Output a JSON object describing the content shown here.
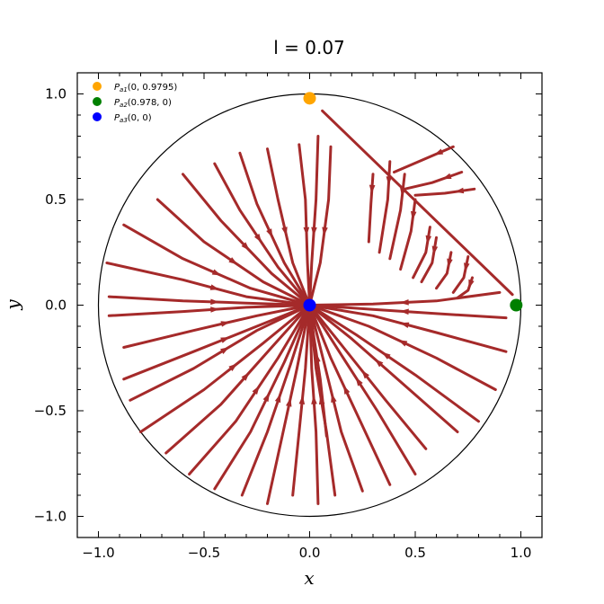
{
  "chart_data": {
    "type": "streamplot",
    "title": "l = 0.07",
    "xlabel": "x",
    "ylabel": "y",
    "xlim": [
      -1.1,
      1.1
    ],
    "ylim": [
      -1.1,
      1.1
    ],
    "x_ticks": [
      -1.0,
      -0.5,
      0.0,
      0.5,
      1.0
    ],
    "y_ticks": [
      -1.0,
      -0.5,
      0.0,
      0.5,
      1.0
    ],
    "x_tick_labels": [
      "−1.0",
      "−0.5",
      "0.0",
      "0.5",
      "1.0"
    ],
    "y_tick_labels": [
      "−1.0",
      "−0.5",
      "0.0",
      "0.5",
      "1.0"
    ],
    "grid": false,
    "legend_position": "top-left",
    "boundary_circle_radius": 1.0,
    "stream_color": "#a52a2a",
    "fixed_points": [
      {
        "label_sym": "P",
        "label_sub": "a1",
        "label_coords": "(0, 0.9795)",
        "x": 0.0,
        "y": 0.9795,
        "color": "#ffa500"
      },
      {
        "label_sym": "P",
        "label_sub": "a2",
        "label_coords": "(0.978, 0)",
        "x": 0.978,
        "y": 0.0,
        "color": "#008000"
      },
      {
        "label_sym": "P",
        "label_sub": "a3",
        "label_coords": "(0, 0)",
        "x": 0.0,
        "y": 0.0,
        "color": "#0000ff"
      }
    ],
    "separatrix": [
      [
        0.06,
        0.92
      ],
      [
        0.96,
        0.05
      ]
    ],
    "streamlines": [
      [
        [
          -0.05,
          0.76
        ],
        [
          -0.02,
          0.5
        ],
        [
          -0.01,
          0.2
        ],
        [
          0.0,
          0.0
        ]
      ],
      [
        [
          0.04,
          0.8
        ],
        [
          0.03,
          0.5
        ],
        [
          0.01,
          0.2
        ],
        [
          0.0,
          0.0
        ]
      ],
      [
        [
          0.1,
          0.75
        ],
        [
          0.09,
          0.5
        ],
        [
          0.05,
          0.2
        ],
        [
          0.0,
          0.0
        ]
      ],
      [
        [
          -0.2,
          0.74
        ],
        [
          -0.15,
          0.5
        ],
        [
          -0.08,
          0.2
        ],
        [
          0.0,
          0.0
        ]
      ],
      [
        [
          -0.33,
          0.72
        ],
        [
          -0.25,
          0.48
        ],
        [
          -0.12,
          0.2
        ],
        [
          0.0,
          0.0
        ]
      ],
      [
        [
          -0.45,
          0.67
        ],
        [
          -0.33,
          0.45
        ],
        [
          -0.15,
          0.18
        ],
        [
          0.0,
          0.0
        ]
      ],
      [
        [
          -0.6,
          0.62
        ],
        [
          -0.42,
          0.4
        ],
        [
          -0.18,
          0.15
        ],
        [
          0.0,
          0.0
        ]
      ],
      [
        [
          -0.72,
          0.5
        ],
        [
          -0.5,
          0.3
        ],
        [
          -0.22,
          0.11
        ],
        [
          0.0,
          0.0
        ]
      ],
      [
        [
          -0.88,
          0.38
        ],
        [
          -0.6,
          0.22
        ],
        [
          -0.28,
          0.08
        ],
        [
          0.0,
          0.0
        ]
      ],
      [
        [
          -0.96,
          0.2
        ],
        [
          -0.6,
          0.12
        ],
        [
          -0.3,
          0.04
        ],
        [
          0.0,
          0.0
        ]
      ],
      [
        [
          -0.95,
          0.04
        ],
        [
          -0.6,
          0.02
        ],
        [
          -0.3,
          0.01
        ],
        [
          0.0,
          0.0
        ]
      ],
      [
        [
          -0.95,
          -0.05
        ],
        [
          -0.6,
          -0.03
        ],
        [
          -0.3,
          -0.01
        ],
        [
          0.0,
          0.0
        ]
      ],
      [
        [
          -0.88,
          -0.2
        ],
        [
          -0.55,
          -0.12
        ],
        [
          -0.25,
          -0.05
        ],
        [
          0.0,
          0.0
        ]
      ],
      [
        [
          -0.88,
          -0.35
        ],
        [
          -0.55,
          -0.22
        ],
        [
          -0.25,
          -0.1
        ],
        [
          0.0,
          0.0
        ]
      ],
      [
        [
          -0.85,
          -0.45
        ],
        [
          -0.55,
          -0.3
        ],
        [
          -0.25,
          -0.12
        ],
        [
          0.0,
          0.0
        ]
      ],
      [
        [
          -0.8,
          -0.6
        ],
        [
          -0.5,
          -0.4
        ],
        [
          -0.22,
          -0.18
        ],
        [
          0.0,
          0.0
        ]
      ],
      [
        [
          -0.68,
          -0.7
        ],
        [
          -0.42,
          -0.47
        ],
        [
          -0.18,
          -0.2
        ],
        [
          0.0,
          0.0
        ]
      ],
      [
        [
          -0.57,
          -0.8
        ],
        [
          -0.35,
          -0.55
        ],
        [
          -0.15,
          -0.25
        ],
        [
          0.0,
          0.0
        ]
      ],
      [
        [
          -0.45,
          -0.87
        ],
        [
          -0.28,
          -0.6
        ],
        [
          -0.12,
          -0.27
        ],
        [
          0.0,
          0.0
        ]
      ],
      [
        [
          -0.32,
          -0.9
        ],
        [
          -0.2,
          -0.6
        ],
        [
          -0.09,
          -0.28
        ],
        [
          0.0,
          0.0
        ]
      ],
      [
        [
          -0.2,
          -0.94
        ],
        [
          -0.13,
          -0.62
        ],
        [
          -0.06,
          -0.3
        ],
        [
          0.0,
          0.0
        ]
      ],
      [
        [
          -0.08,
          -0.9
        ],
        [
          -0.05,
          -0.6
        ],
        [
          -0.02,
          -0.3
        ],
        [
          0.0,
          0.0
        ]
      ],
      [
        [
          0.04,
          -0.94
        ],
        [
          0.03,
          -0.6
        ],
        [
          0.01,
          -0.3
        ],
        [
          0.0,
          0.0
        ]
      ],
      [
        [
          0.08,
          -0.62
        ],
        [
          0.05,
          -0.35
        ],
        [
          0.02,
          -0.15
        ],
        [
          0.0,
          0.0
        ]
      ],
      [
        [
          0.12,
          -0.9
        ],
        [
          0.08,
          -0.6
        ],
        [
          0.03,
          -0.3
        ],
        [
          0.0,
          0.0
        ]
      ],
      [
        [
          0.25,
          -0.88
        ],
        [
          0.15,
          -0.6
        ],
        [
          0.07,
          -0.28
        ],
        [
          0.0,
          0.0
        ]
      ],
      [
        [
          0.38,
          -0.85
        ],
        [
          0.24,
          -0.55
        ],
        [
          0.1,
          -0.25
        ],
        [
          0.0,
          0.0
        ]
      ],
      [
        [
          0.5,
          -0.8
        ],
        [
          0.32,
          -0.5
        ],
        [
          0.14,
          -0.22
        ],
        [
          0.0,
          0.0
        ]
      ],
      [
        [
          0.55,
          -0.68
        ],
        [
          0.36,
          -0.45
        ],
        [
          0.16,
          -0.2
        ],
        [
          0.0,
          0.0
        ]
      ],
      [
        [
          0.7,
          -0.6
        ],
        [
          0.45,
          -0.38
        ],
        [
          0.2,
          -0.16
        ],
        [
          0.0,
          0.0
        ]
      ],
      [
        [
          0.8,
          -0.55
        ],
        [
          0.5,
          -0.33
        ],
        [
          0.22,
          -0.14
        ],
        [
          0.0,
          0.0
        ]
      ],
      [
        [
          0.88,
          -0.4
        ],
        [
          0.6,
          -0.25
        ],
        [
          0.28,
          -0.1
        ],
        [
          0.0,
          0.0
        ]
      ],
      [
        [
          0.93,
          -0.22
        ],
        [
          0.6,
          -0.13
        ],
        [
          0.3,
          -0.05
        ],
        [
          0.0,
          0.0
        ]
      ],
      [
        [
          0.93,
          -0.06
        ],
        [
          0.6,
          -0.04
        ],
        [
          0.3,
          -0.02
        ],
        [
          0.0,
          0.0
        ]
      ],
      [
        [
          0.9,
          0.06
        ],
        [
          0.6,
          0.02
        ],
        [
          0.3,
          0.005
        ],
        [
          0.0,
          0.0
        ]
      ],
      [
        [
          0.3,
          0.62
        ],
        [
          0.29,
          0.48
        ],
        [
          0.28,
          0.3
        ]
      ],
      [
        [
          0.38,
          0.68
        ],
        [
          0.37,
          0.5
        ],
        [
          0.33,
          0.25
        ]
      ],
      [
        [
          0.45,
          0.62
        ],
        [
          0.43,
          0.45
        ],
        [
          0.38,
          0.22
        ]
      ],
      [
        [
          0.5,
          0.5
        ],
        [
          0.48,
          0.35
        ],
        [
          0.43,
          0.17
        ]
      ],
      [
        [
          0.57,
          0.37
        ],
        [
          0.55,
          0.25
        ],
        [
          0.49,
          0.13
        ]
      ],
      [
        [
          0.6,
          0.32
        ],
        [
          0.58,
          0.2
        ],
        [
          0.53,
          0.11
        ]
      ],
      [
        [
          0.67,
          0.25
        ],
        [
          0.65,
          0.15
        ],
        [
          0.6,
          0.08
        ]
      ],
      [
        [
          0.75,
          0.23
        ],
        [
          0.73,
          0.13
        ],
        [
          0.68,
          0.06
        ]
      ],
      [
        [
          0.77,
          0.13
        ],
        [
          0.75,
          0.07
        ],
        [
          0.7,
          0.035
        ]
      ],
      [
        [
          0.68,
          0.75
        ],
        [
          0.54,
          0.69
        ],
        [
          0.4,
          0.63
        ]
      ],
      [
        [
          0.72,
          0.63
        ],
        [
          0.58,
          0.58
        ],
        [
          0.45,
          0.55
        ]
      ],
      [
        [
          0.78,
          0.55
        ],
        [
          0.64,
          0.53
        ],
        [
          0.5,
          0.52
        ]
      ]
    ]
  }
}
